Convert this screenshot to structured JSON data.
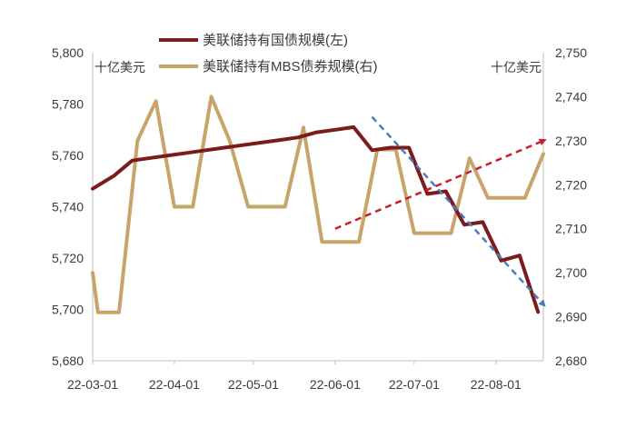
{
  "chart_data": {
    "type": "line",
    "unit_left": "十亿美元",
    "unit_right": "十亿美元",
    "y_left": {
      "ticks": [
        "5,680",
        "5,700",
        "5,720",
        "5,740",
        "5,760",
        "5,780",
        "5,800"
      ],
      "range": [
        5680,
        5800
      ]
    },
    "y_right": {
      "ticks": [
        "2,680",
        "2,690",
        "2,700",
        "2,710",
        "2,720",
        "2,730",
        "2,740",
        "2,750"
      ],
      "range": [
        2680,
        2750
      ]
    },
    "x_ticks": [
      "22-03-01",
      "22-04-01",
      "22-05-01",
      "22-06-01",
      "22-07-01",
      "22-08-01"
    ],
    "x_tick_dates": [
      "2022-03-01",
      "2022-04-01",
      "2022-05-01",
      "2022-06-01",
      "2022-07-01",
      "2022-08-01"
    ],
    "series": [
      {
        "name": "美联储持有国债规模(左)",
        "axis": "left",
        "color": "#7b1b1b",
        "points": [
          [
            "2022-03-01",
            5747
          ],
          [
            "2022-03-09",
            5752
          ],
          [
            "2022-03-16",
            5758
          ],
          [
            "2022-03-23",
            5759
          ],
          [
            "2022-03-30",
            5760
          ],
          [
            "2022-04-06",
            5761
          ],
          [
            "2022-04-13",
            5762
          ],
          [
            "2022-04-20",
            5763
          ],
          [
            "2022-04-27",
            5764
          ],
          [
            "2022-05-04",
            5765
          ],
          [
            "2022-05-11",
            5766
          ],
          [
            "2022-05-18",
            5767
          ],
          [
            "2022-05-25",
            5769
          ],
          [
            "2022-06-01",
            5770
          ],
          [
            "2022-06-08",
            5771
          ],
          [
            "2022-06-15",
            5762
          ],
          [
            "2022-06-22",
            5763
          ],
          [
            "2022-06-29",
            5763
          ],
          [
            "2022-07-06",
            5745
          ],
          [
            "2022-07-13",
            5746
          ],
          [
            "2022-07-20",
            5733
          ],
          [
            "2022-07-27",
            5734
          ],
          [
            "2022-08-03",
            5719
          ],
          [
            "2022-08-10",
            5721
          ],
          [
            "2022-08-17",
            5699
          ]
        ]
      },
      {
        "name": "美联储持有MBS债券规模(右)",
        "axis": "right",
        "color": "#c8a46a",
        "points": [
          [
            "2022-03-01",
            2700
          ],
          [
            "2022-03-03",
            2691
          ],
          [
            "2022-03-11",
            2691
          ],
          [
            "2022-03-18",
            2730
          ],
          [
            "2022-03-25",
            2739
          ],
          [
            "2022-04-01",
            2715
          ],
          [
            "2022-04-08",
            2715
          ],
          [
            "2022-04-15",
            2740
          ],
          [
            "2022-04-22",
            2730
          ],
          [
            "2022-04-29",
            2715
          ],
          [
            "2022-05-06",
            2715
          ],
          [
            "2022-05-13",
            2715
          ],
          [
            "2022-05-20",
            2733
          ],
          [
            "2022-05-27",
            2707
          ],
          [
            "2022-06-03",
            2707
          ],
          [
            "2022-06-10",
            2707
          ],
          [
            "2022-06-17",
            2728
          ],
          [
            "2022-06-24",
            2728
          ],
          [
            "2022-07-01",
            2709
          ],
          [
            "2022-07-08",
            2709
          ],
          [
            "2022-07-15",
            2709
          ],
          [
            "2022-07-22",
            2726
          ],
          [
            "2022-07-29",
            2717
          ],
          [
            "2022-08-05",
            2717
          ],
          [
            "2022-08-12",
            2717
          ],
          [
            "2022-08-19",
            2727
          ]
        ]
      }
    ],
    "annotations": [
      {
        "type": "dashed-arrow",
        "color": "#c8202a",
        "axis": "right",
        "from": [
          "2022-06-01",
          2710
        ],
        "to": [
          "2022-08-19",
          2730
        ]
      },
      {
        "type": "dashed-arrow",
        "color": "#4a7ec0",
        "axis": "left",
        "from": [
          "2022-06-15",
          5775
        ],
        "to": [
          "2022-08-19",
          5702
        ]
      }
    ],
    "legend_position": "top-center",
    "grid": false
  }
}
